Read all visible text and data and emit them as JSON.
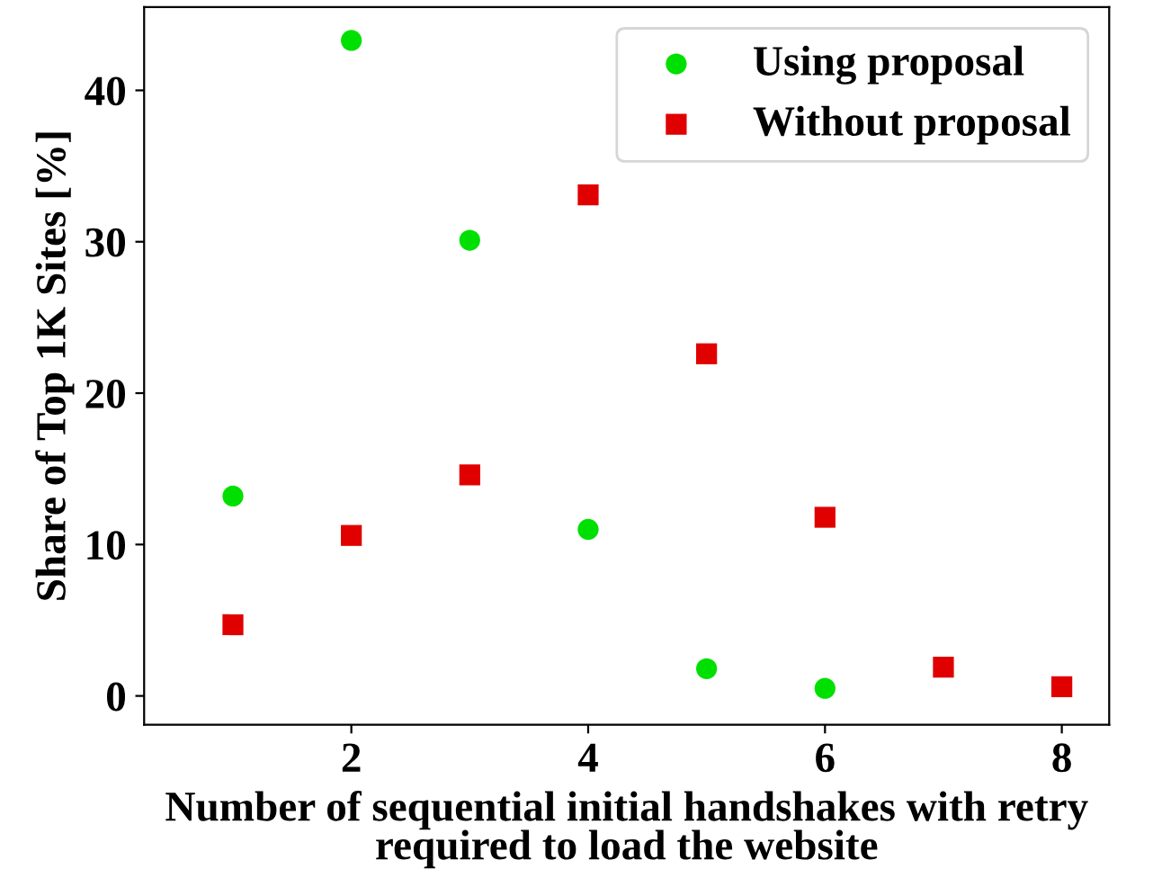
{
  "chart_data": {
    "type": "scatter",
    "xlabel": "Number of sequential initial handshakes with retry\nrequired to load the website",
    "ylabel": "Share of Top 1K Sites [%]",
    "series": [
      {
        "name": "Using proposal",
        "color": "#00e000",
        "marker": "circle",
        "x": [
          1,
          2,
          3,
          4,
          5,
          6
        ],
        "values": [
          13.2,
          43.3,
          30.1,
          11.0,
          1.8,
          0.5
        ]
      },
      {
        "name": "Without proposal",
        "color": "#e00000",
        "marker": "square",
        "x": [
          1,
          2,
          3,
          4,
          5,
          6,
          7,
          8
        ],
        "values": [
          4.7,
          10.6,
          14.6,
          33.1,
          22.6,
          11.8,
          1.9,
          0.6
        ]
      }
    ],
    "xlim": [
      0.25,
      8.4
    ],
    "ylim": [
      -1.9,
      45.5
    ],
    "xticks": [
      2,
      4,
      6,
      8
    ],
    "yticks": [
      0,
      10,
      20,
      30,
      40
    ],
    "grid": false,
    "legend": "top right"
  }
}
